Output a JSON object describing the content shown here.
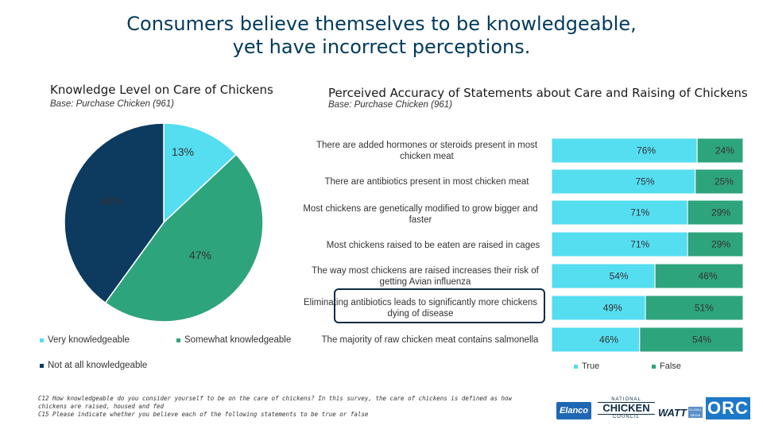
{
  "title": {
    "line1": "Consumers believe themselves to be knowledgeable,",
    "line2": "yet have incorrect perceptions."
  },
  "left_panel": {
    "title": "Knowledge Level on Care of Chickens",
    "base": "Base: Purchase Chicken (961)"
  },
  "right_panel": {
    "title": "Perceived Accuracy of Statements about Care and Raising of Chickens",
    "base": "Base: Purchase Chicken (961)"
  },
  "colors": {
    "very": "#55ddf0",
    "somewhat": "#2ea47c",
    "not_at_all": "#0d3a5f",
    "true": "#55ddf0",
    "false": "#2ea47c"
  },
  "chart_data": [
    {
      "type": "pie",
      "slices": [
        {
          "name": "Very knowledgeable",
          "value": 13,
          "label": "13%"
        },
        {
          "name": "Somewhat knowledgeable",
          "value": 47,
          "label": "47%"
        },
        {
          "name": "Not at all knowledgeable",
          "value": 40,
          "label": "40%"
        }
      ],
      "legend": [
        "Very knowledgeable",
        "Somewhat knowledgeable",
        "Not at all knowledgeable"
      ]
    },
    {
      "type": "bar",
      "orientation": "horizontal",
      "stacked": true,
      "categories": [
        "There are added hormones or steroids present in most chicken meat",
        "There are antibiotics present in most chicken meat",
        "Most chickens are genetically modified to grow bigger and faster",
        "Most chickens raised to be eaten are raised in cages",
        "The way most chickens are raised increases their risk of getting Avian influenza",
        "Eliminating antibiotics leads to significantly more chickens dying of disease",
        "The majority of raw chicken meat contains salmonella"
      ],
      "series": [
        {
          "name": "True",
          "values": [
            76,
            75,
            71,
            71,
            54,
            49,
            46
          ],
          "labels": [
            "76%",
            "75%",
            "71%",
            "71%",
            "54%",
            "49%",
            "46%"
          ]
        },
        {
          "name": "False",
          "values": [
            24,
            25,
            29,
            29,
            46,
            51,
            54
          ],
          "labels": [
            "24%",
            "25%",
            "29%",
            "29%",
            "46%",
            "51%",
            "54%"
          ]
        }
      ],
      "xlim": [
        0,
        100
      ],
      "legend": [
        "True",
        "False"
      ]
    }
  ],
  "statements": [
    [
      "There are added hormones or steroids present in most",
      "chicken meat"
    ],
    [
      "There are antibiotics present in most chicken meat"
    ],
    [
      "Most chickens are genetically modified to grow bigger and",
      "faster"
    ],
    [
      "Most chickens raised to be eaten are raised in cages"
    ],
    [
      "The way most chickens are raised increases their risk of",
      "getting Avian influenza"
    ],
    [
      "Eliminating antibiotics leads to significantly more chickens",
      "dying of disease"
    ],
    [
      "The majority of raw chicken meat contains salmonella"
    ]
  ],
  "footnote": {
    "line1": "C12   How knowledgeable do you consider yourself to be on the care of chickens?   In this survey, the care of chickens is defined as how",
    "line2": "chickens are raised, housed and fed",
    "line3": "C15    Please indicate whether you believe each of the following statements to be true or false"
  },
  "logos": {
    "elanco": "Elanco",
    "ncc_top": "NATIONAL",
    "ncc_main": "CHICKEN",
    "ncc_bottom": "COUNCIL",
    "watt": "WATT",
    "watt_sub": "GLOBAL MEDIA",
    "orc": "ORC"
  }
}
